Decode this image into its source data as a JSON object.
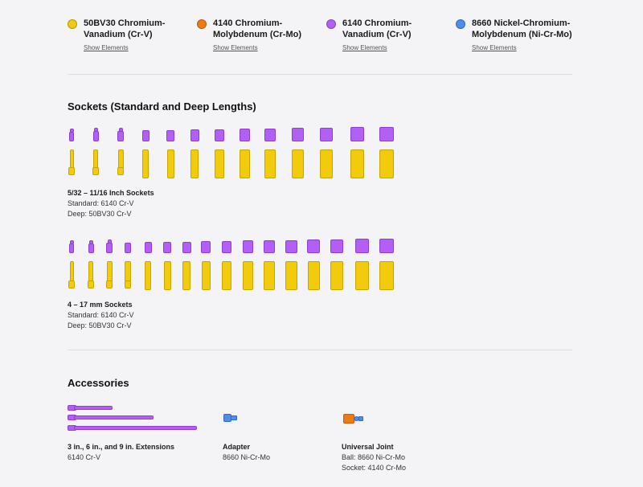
{
  "colors": {
    "cr_v_50bv30": "#f1cb0c",
    "cr_mo_4140": "#ef7a14",
    "cr_v_6140": "#b35ef5",
    "ni_cr_mo_8660": "#4f8de8"
  },
  "legend": [
    {
      "line1": "50BV30 Chromium-",
      "line2": "Vanadium (Cr-V)",
      "link": "Show Elements",
      "color": "#f1cb0c"
    },
    {
      "line1": "4140 Chromium-",
      "line2": "Molybdenum (Cr-Mo)",
      "link": "Show Elements",
      "color": "#ef7a14"
    },
    {
      "line1": "6140 Chromium-",
      "line2": "Vanadium (Cr-V)",
      "link": "Show Elements",
      "color": "#b35ef5"
    },
    {
      "line1": "8660 Nickel-Chromium-",
      "line2": "Molybdenum (Ni-Cr-Mo)",
      "link": "Show Elements",
      "color": "#4f8de8"
    }
  ],
  "sockets": {
    "title": "Sockets (Standard and Deep Lengths)",
    "inch": {
      "title": "5/32 – 11/16 Inch Sockets",
      "standard": "Standard: 6140 Cr-V",
      "deep": "Deep: 50BV30 Cr-V"
    },
    "mm": {
      "title": "4 – 17 mm Sockets",
      "standard": "Standard: 6140 Cr-V",
      "deep": "Deep: 50BV30 Cr-V"
    }
  },
  "accessories": {
    "title": "Accessories",
    "extensions": {
      "title": "3 in., 6 in., and 9 in. Extensions",
      "material": "6140 Cr-V"
    },
    "adapter": {
      "title": "Adapter",
      "material": "8660 Ni-Cr-Mo"
    },
    "universal_joint": {
      "title": "Universal Joint",
      "ball": "Ball: 8660 Ni-Cr-Mo",
      "socket": "Socket: 4140 Cr-Mo"
    }
  }
}
